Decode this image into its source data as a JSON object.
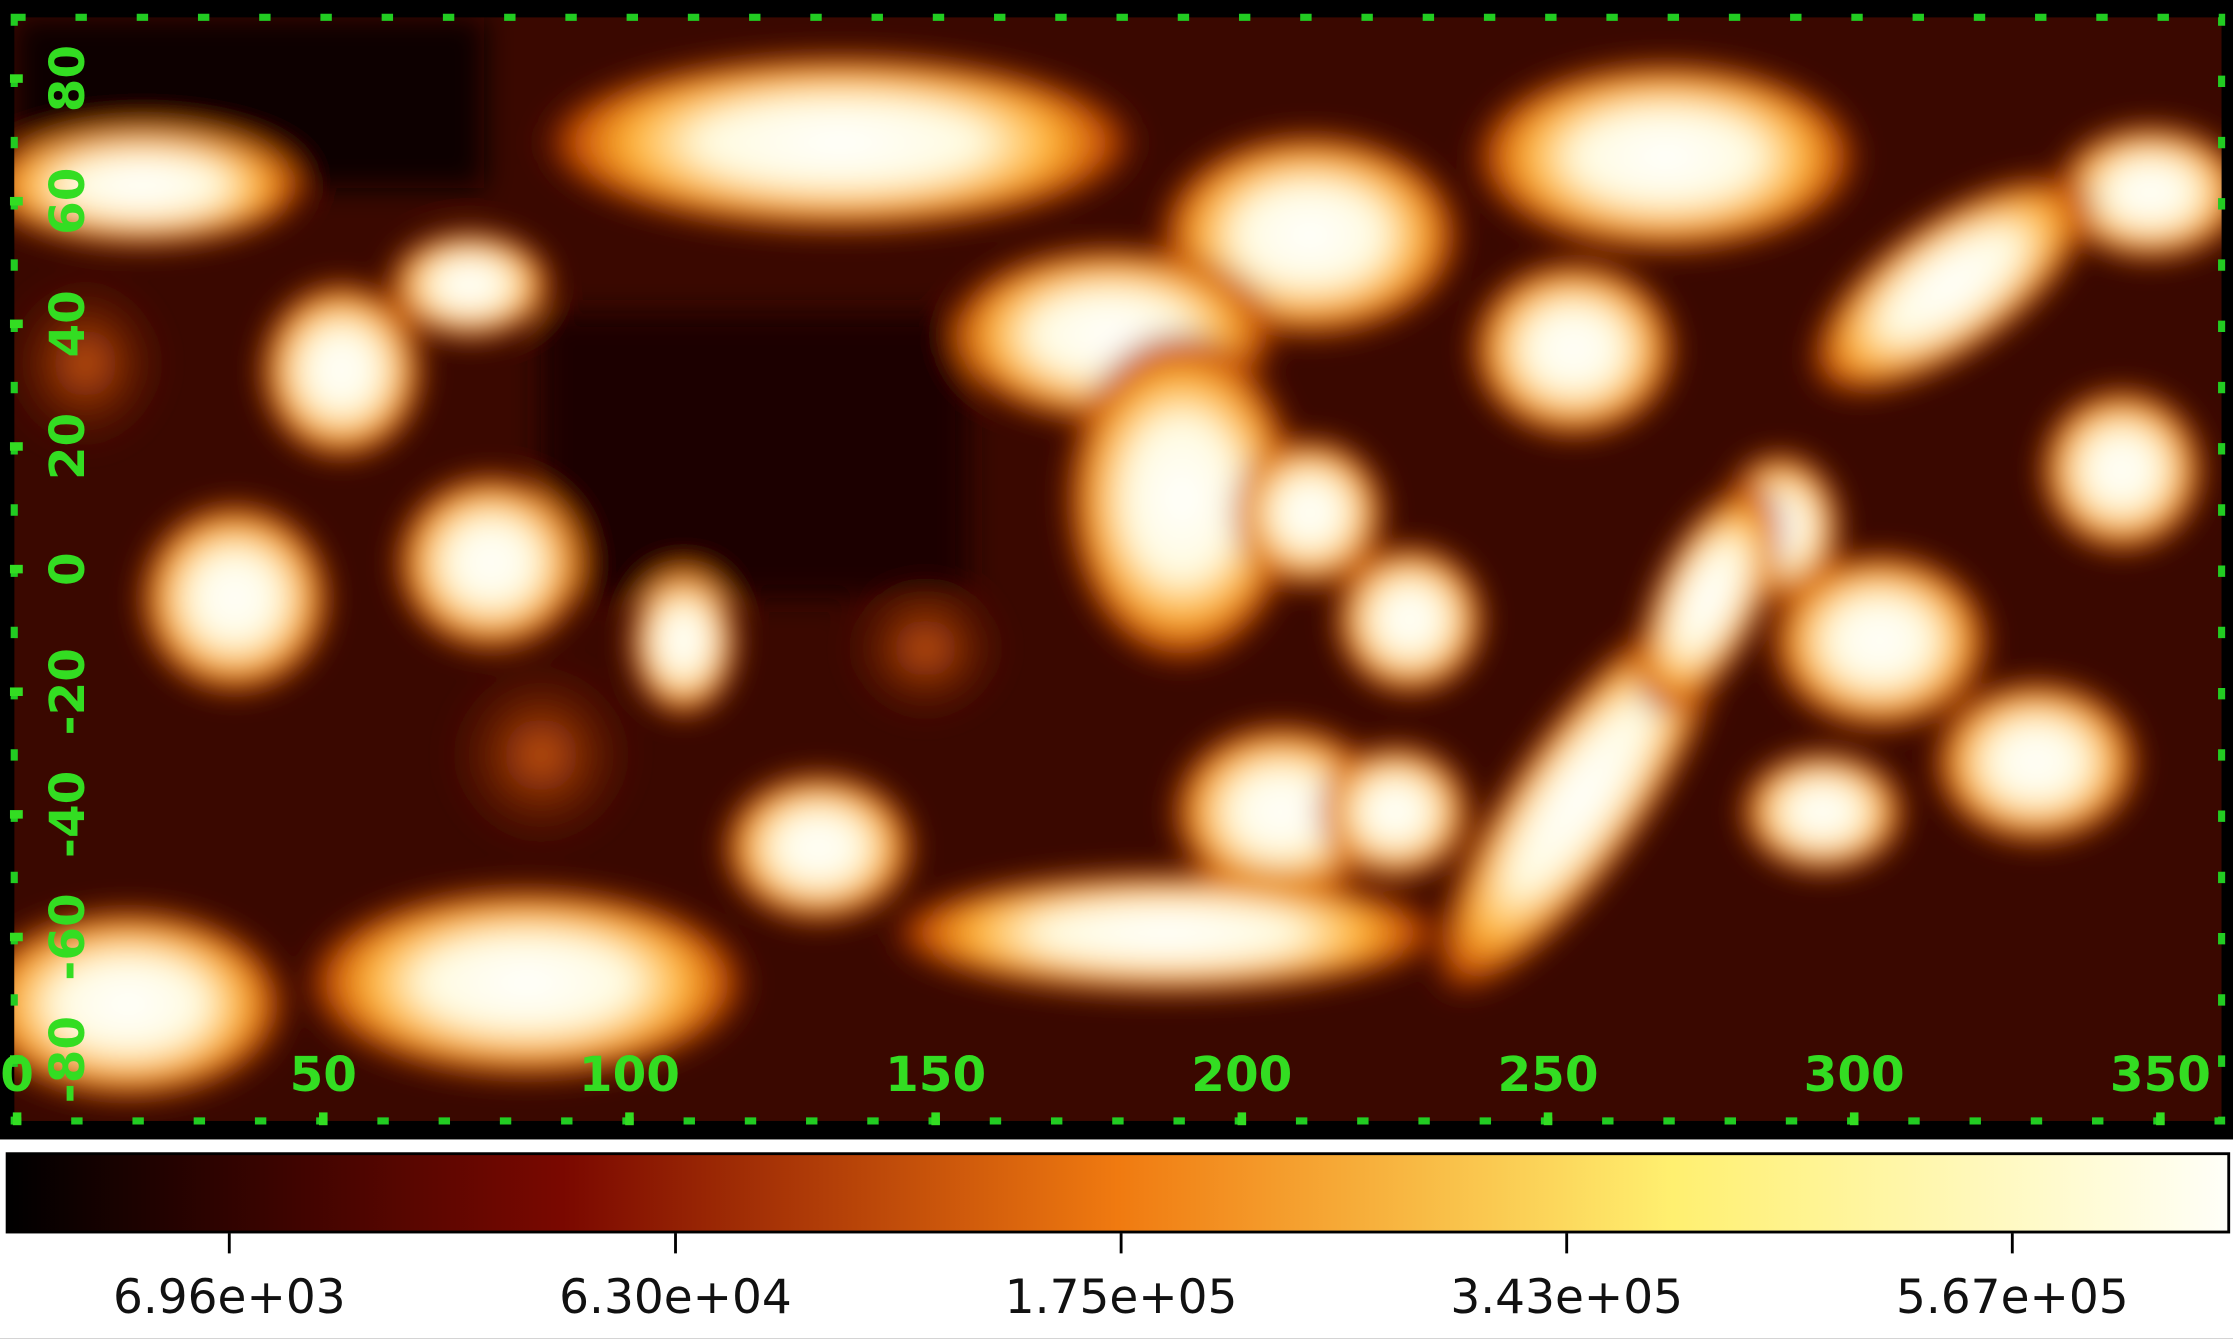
{
  "chart_data": {
    "type": "image",
    "xlim": [
      0,
      360
    ],
    "xticks": [
      0,
      50,
      100,
      150,
      200,
      250,
      300,
      350
    ],
    "ylim": [
      -90,
      90
    ],
    "yticks": [
      -80,
      -60,
      -40,
      -20,
      0,
      20,
      40,
      60,
      80
    ],
    "colorbar": {
      "scale": "sqrt",
      "clim": [
        0,
        696000
      ],
      "ticks": [
        {
          "value": 6960,
          "label": "6.96e+03"
        },
        {
          "value": 63000,
          "label": "6.30e+04"
        },
        {
          "value": 175000,
          "label": "1.75e+05"
        },
        {
          "value": 343000,
          "label": "3.43e+05"
        },
        {
          "value": 567000,
          "label": "5.67e+05"
        }
      ]
    },
    "axis_color": "#33dd22"
  }
}
